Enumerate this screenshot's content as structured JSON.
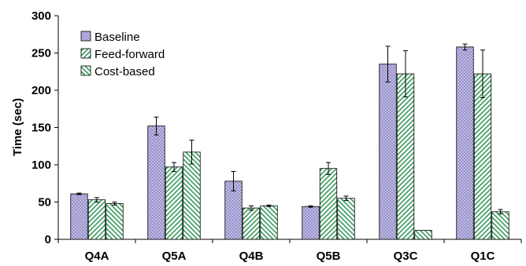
{
  "chart_data": {
    "type": "bar",
    "title": "",
    "xlabel": "",
    "ylabel": "Time (sec)",
    "ylim": [
      0,
      300
    ],
    "yticks": [
      0,
      50,
      100,
      150,
      200,
      250,
      300
    ],
    "grid": false,
    "legend_position": "top-left",
    "categories": [
      "Q4A",
      "Q5A",
      "Q4B",
      "Q5B",
      "Q3C",
      "Q1C"
    ],
    "series": [
      {
        "name": "Baseline",
        "pattern": "crosshatch",
        "fill_color": "#b9b4e0",
        "values": [
          61,
          152,
          78,
          44,
          235,
          258
        ],
        "errors": [
          1,
          12,
          13,
          1,
          24,
          4
        ]
      },
      {
        "name": "Feed-forward",
        "pattern": "diagonal-right",
        "fill_color": "#3a9a5c",
        "values": [
          53,
          97,
          42,
          95,
          222,
          222
        ],
        "errors": [
          3,
          6,
          3,
          8,
          31,
          32
        ]
      },
      {
        "name": "Cost-based",
        "pattern": "diagonal-left",
        "fill_color": "#3a9a5c",
        "values": [
          48,
          117,
          45,
          55,
          12,
          37
        ],
        "errors": [
          2,
          16,
          1,
          3,
          0,
          3
        ]
      }
    ]
  }
}
